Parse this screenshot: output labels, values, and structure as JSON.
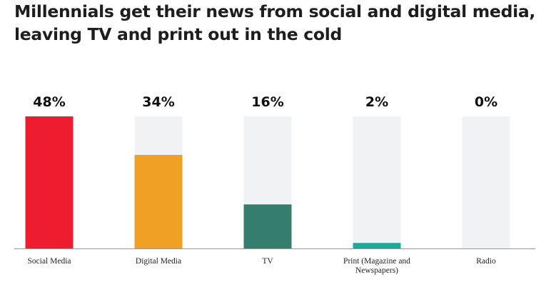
{
  "title_line1": "Millennials get their news from social and digital media,",
  "title_line2": "leaving TV and print out in the cold",
  "chart_data": {
    "type": "bar",
    "title": "Millennials get their news from social and digital media, leaving TV and print out in the cold",
    "categories": [
      "Social Media",
      "Digital Media",
      "TV",
      "Print (Magazine and Newspapers)",
      "Radio"
    ],
    "category_lines": [
      [
        "Social Media"
      ],
      [
        "Digital Media"
      ],
      [
        "TV"
      ],
      [
        "Print (Magazine and",
        "Newspapers)"
      ],
      [
        "Radio"
      ]
    ],
    "values": [
      48,
      34,
      16,
      2,
      0
    ],
    "value_labels": [
      "48%",
      "34%",
      "16%",
      "2%",
      "0%"
    ],
    "ylim": [
      0,
      48
    ],
    "grid": false,
    "legend": "none",
    "colors": [
      "#ed1c2e",
      "#f0a025",
      "#357d6d",
      "#1aa99a",
      "#cccccc"
    ],
    "track_color": "#f1f2f4",
    "axis_color": "#999999"
  }
}
